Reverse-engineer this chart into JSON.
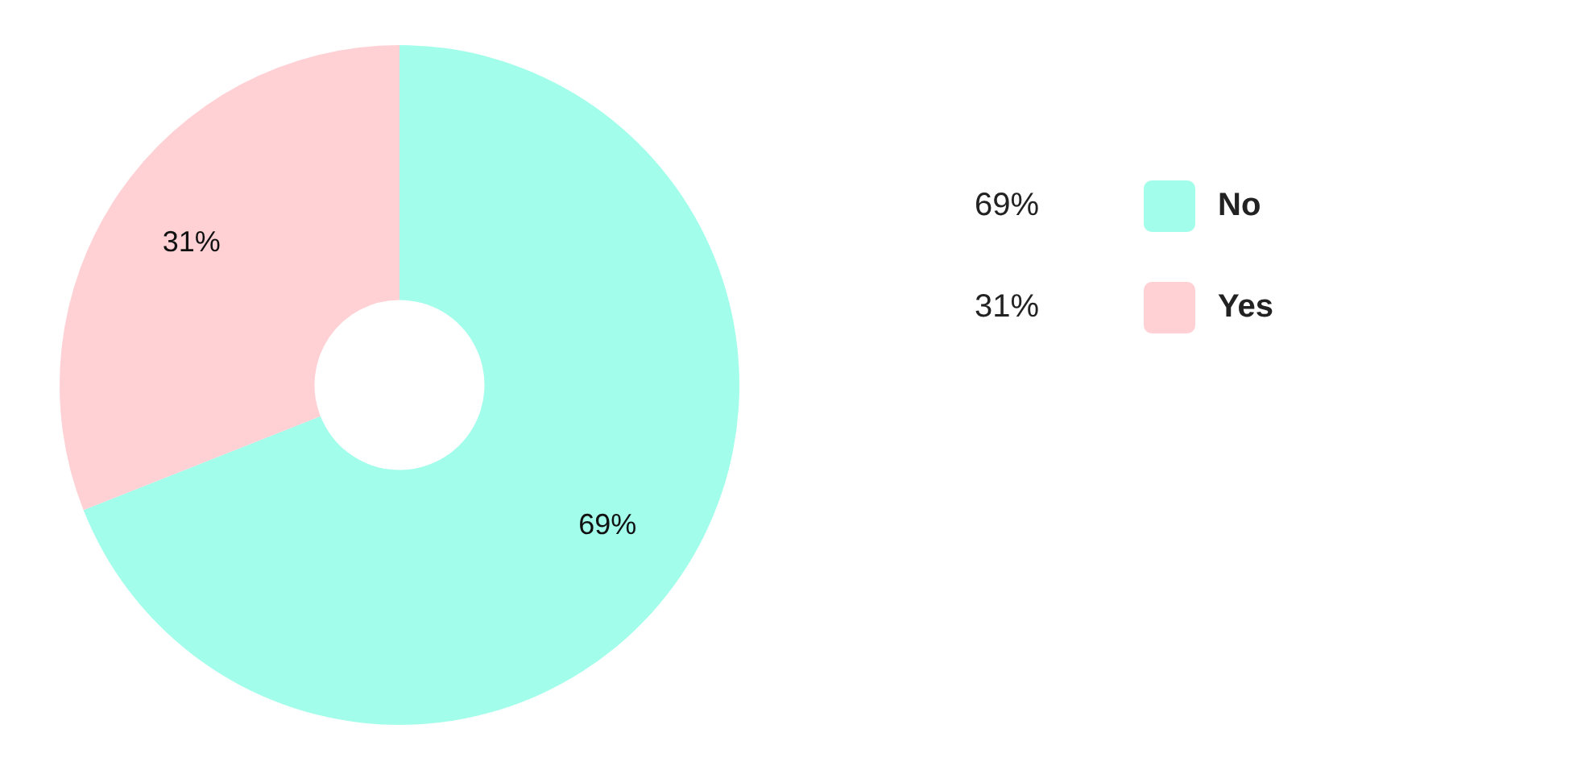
{
  "chart_data": {
    "type": "donut",
    "categories": [
      "No",
      "Yes"
    ],
    "values": [
      69,
      31
    ],
    "value_labels": [
      "69%",
      "31%"
    ],
    "colors": [
      "#a3fdeb",
      "#ffd0d4"
    ],
    "legend": "right"
  }
}
